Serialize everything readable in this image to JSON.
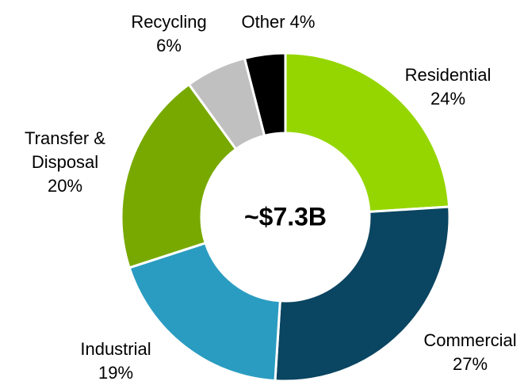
{
  "chart_data": {
    "type": "donut",
    "center_label": "~$7.3B",
    "categories": [
      "Residential",
      "Commercial",
      "Industrial",
      "Transfer & Disposal",
      "Recycling",
      "Other"
    ],
    "values": [
      24,
      27,
      19,
      20,
      6,
      4
    ],
    "value_labels": [
      "24%",
      "27%",
      "19%",
      "20%",
      "6%",
      "4%"
    ],
    "colors": [
      "#95d600",
      "#0a4561",
      "#2a9cc1",
      "#78a900",
      "#c0c0c0",
      "#000000"
    ]
  }
}
